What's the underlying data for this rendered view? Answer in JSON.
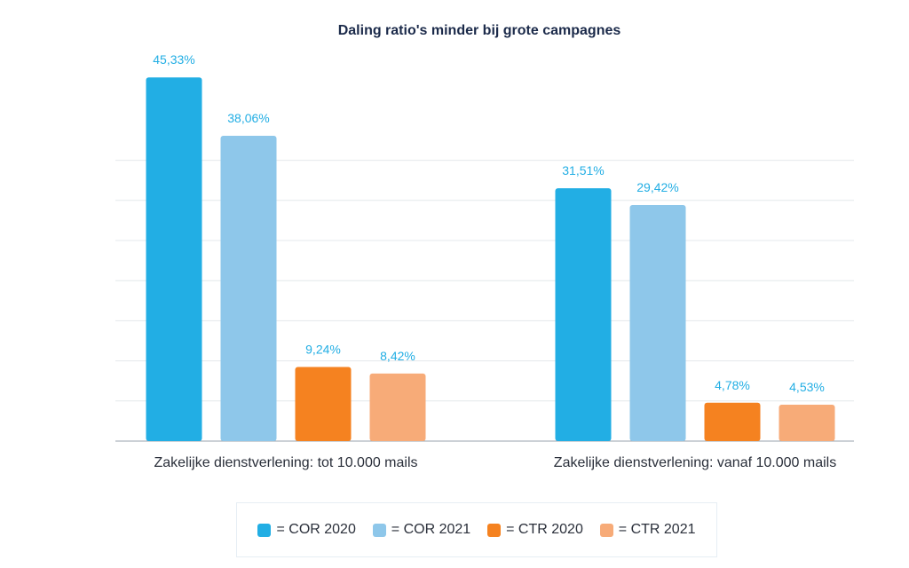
{
  "chart_data": {
    "type": "bar",
    "title": "Daling ratio's minder bij grote campagnes",
    "categories": [
      "Zakelijke dienstverlening: tot 10.000 mails",
      "Zakelijke dienstverlening: vanaf 10.000 mails"
    ],
    "series": [
      {
        "name": "COR 2020",
        "values": [
          45.33,
          31.51
        ],
        "labels": [
          "45,33%",
          "31,51%"
        ],
        "color": "#22aee4"
      },
      {
        "name": "COR 2021",
        "values": [
          38.06,
          29.42
        ],
        "labels": [
          "38,06%",
          "29,42%"
        ],
        "color": "#8ec7ea"
      },
      {
        "name": "CTR 2020",
        "values": [
          9.24,
          4.78
        ],
        "labels": [
          "9,24%",
          "4,78%"
        ],
        "color": "#f58220"
      },
      {
        "name": "CTR 2021",
        "values": [
          8.42,
          4.53
        ],
        "labels": [
          "8,42%",
          "4,53%"
        ],
        "color": "#f7ab78"
      }
    ],
    "legend_labels": [
      "= COR 2020",
      "= COR 2021",
      "= CTR 2020",
      "= CTR 2021"
    ],
    "ylim": [
      0,
      50
    ],
    "grid": true,
    "legend_position": "bottom",
    "label_color": "#22aee4"
  }
}
